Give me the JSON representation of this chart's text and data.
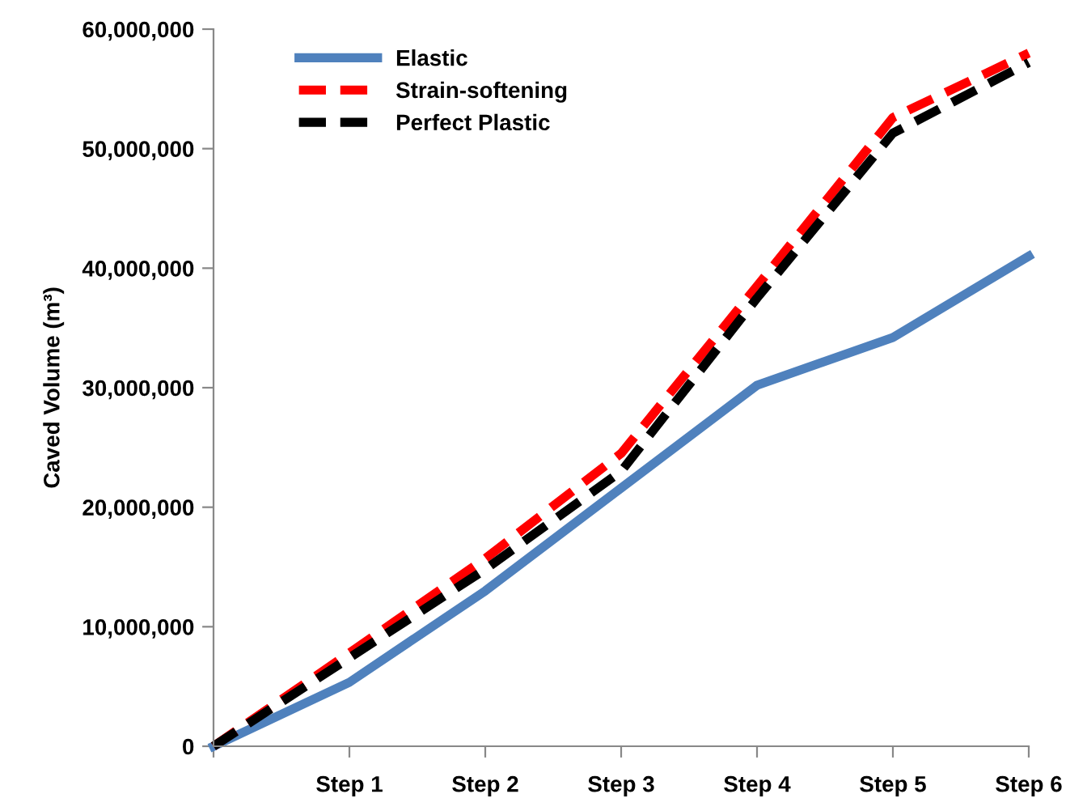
{
  "chart_data": {
    "type": "line",
    "ylabel": "Caved Volume (m³)",
    "categories": [
      null,
      "Step 1",
      "Step 2",
      "Step 3",
      "Step 4",
      "Step 5",
      "Step 6"
    ],
    "series": [
      {
        "name": "Elastic",
        "color": "#4f81bd",
        "line_style": "solid",
        "values": [
          0,
          5350000,
          13000000,
          21600000,
          30200000,
          34200000,
          41000000
        ]
      },
      {
        "name": "Strain-softening",
        "color": "#ff0000",
        "line_style": "dashed",
        "values": [
          0,
          7800000,
          15700000,
          24500000,
          38500000,
          52600000,
          58000000
        ]
      },
      {
        "name": "Perfect Plastic",
        "color": "#000000",
        "line_style": "dashed",
        "values": [
          0,
          7400000,
          14800000,
          23000000,
          37500000,
          51300000,
          57200000
        ]
      }
    ],
    "ylim": [
      0,
      60000000
    ],
    "yticks": [
      {
        "value": 0,
        "label": "0"
      },
      {
        "value": 10000000,
        "label": "10,000,000"
      },
      {
        "value": 20000000,
        "label": "20,000,000"
      },
      {
        "value": 30000000,
        "label": "30,000,000"
      },
      {
        "value": 40000000,
        "label": "40,000,000"
      },
      {
        "value": 50000000,
        "label": "50,000,000"
      },
      {
        "value": 60000000,
        "label": "60,000,000"
      }
    ],
    "grid": false,
    "legend": "top left",
    "marker": "none"
  }
}
